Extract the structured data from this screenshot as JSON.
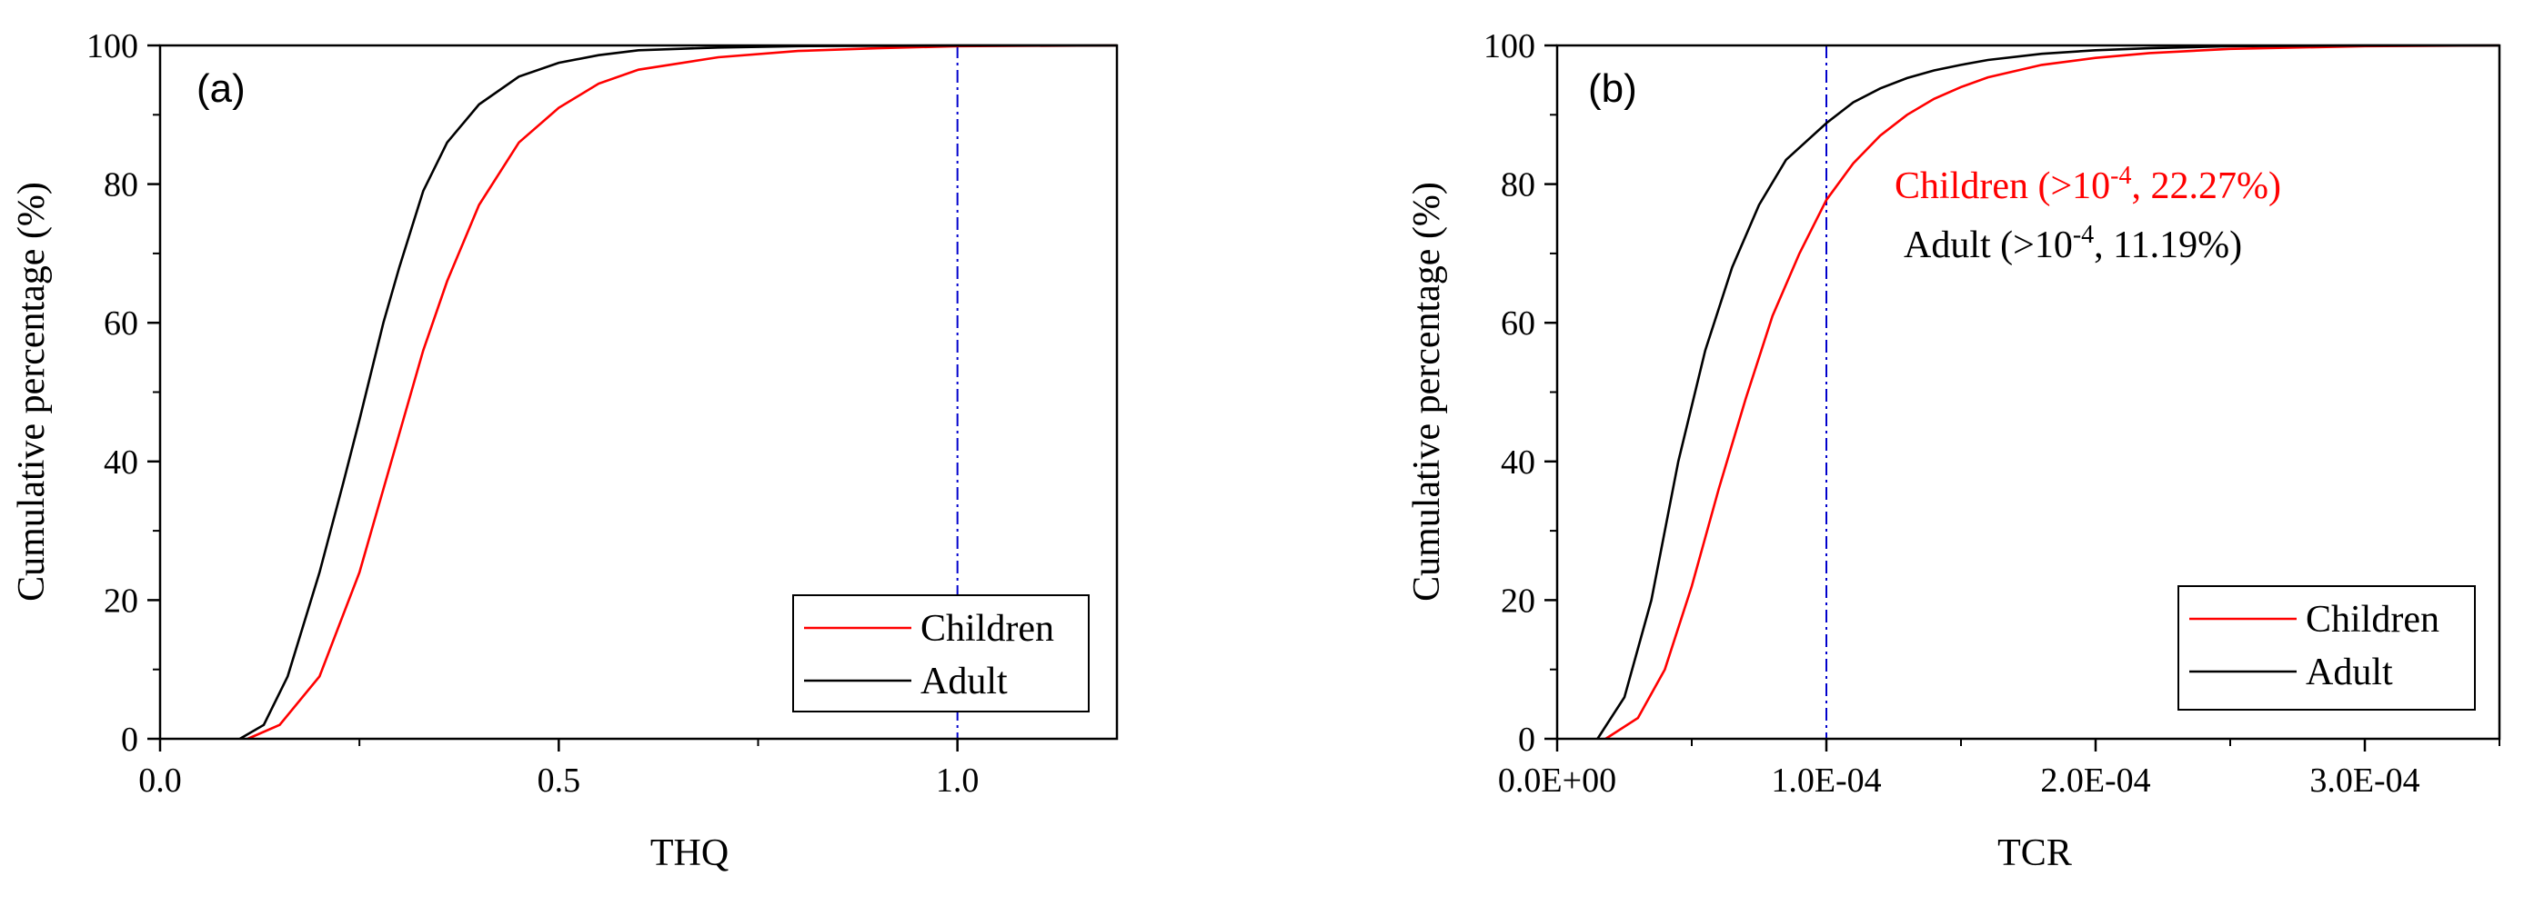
{
  "colors": {
    "children": "#ff0000",
    "adult": "#000000",
    "threshold": "#0000cc"
  },
  "chart_data": [
    {
      "type": "line",
      "panel_label": "(a)",
      "xlabel": "THQ",
      "ylabel": "Cumulative percentage (%)",
      "xlim": [
        0,
        1.2
      ],
      "ylim": [
        0,
        100
      ],
      "xticks": [
        0.0,
        0.5,
        1.0
      ],
      "xtick_labels": [
        "0.0",
        "0.5",
        "1.0"
      ],
      "yticks": [
        0,
        20,
        40,
        60,
        80,
        100
      ],
      "ytick_labels": [
        "0",
        "20",
        "40",
        "60",
        "80",
        "100"
      ],
      "threshold_x": 1.0,
      "legend": {
        "position": "bottom-right",
        "entries": [
          "Children",
          "Adult"
        ]
      },
      "series": [
        {
          "name": "Children",
          "color": "children",
          "x": [
            0.11,
            0.15,
            0.2,
            0.25,
            0.28,
            0.3,
            0.33,
            0.36,
            0.4,
            0.45,
            0.5,
            0.55,
            0.6,
            0.7,
            0.8,
            0.9,
            1.0,
            1.2
          ],
          "y": [
            0,
            2,
            9,
            24,
            36,
            44,
            56,
            66,
            77,
            86,
            91,
            94.5,
            96.5,
            98.3,
            99.2,
            99.6,
            99.9,
            100
          ]
        },
        {
          "name": "Adult",
          "color": "adult",
          "x": [
            0.1,
            0.13,
            0.16,
            0.2,
            0.23,
            0.25,
            0.28,
            0.3,
            0.33,
            0.36,
            0.4,
            0.45,
            0.5,
            0.55,
            0.6,
            0.7,
            0.8,
            1.0,
            1.2
          ],
          "y": [
            0,
            2,
            9,
            24,
            37,
            46,
            60,
            68,
            79,
            86,
            91.5,
            95.5,
            97.5,
            98.6,
            99.3,
            99.7,
            99.9,
            100,
            100
          ]
        }
      ]
    },
    {
      "type": "line",
      "panel_label": "(b)",
      "xlabel": "TCR",
      "ylabel": "Cumulative percentage (%)",
      "xlim": [
        0,
        0.00035
      ],
      "ylim": [
        0,
        100
      ],
      "xticks": [
        0,
        0.0001,
        0.0002,
        0.0003
      ],
      "xtick_labels": [
        "0.0E+00",
        "1.0E-04",
        "2.0E-04",
        "3.0E-04"
      ],
      "yticks": [
        0,
        20,
        40,
        60,
        80,
        100
      ],
      "ytick_labels": [
        "0",
        "20",
        "40",
        "60",
        "80",
        "100"
      ],
      "threshold_x": 0.0001,
      "legend": {
        "position": "bottom-right",
        "entries": [
          "Children",
          "Adult"
        ]
      },
      "annotations": [
        {
          "text": "Children (>10",
          "sup": "-4",
          "tail": ", 22.27%)",
          "color": "children"
        },
        {
          "text": "Adult (>10",
          "sup": "-4",
          "tail": ", 11.19%)",
          "color": "adult"
        }
      ],
      "series": [
        {
          "name": "Children",
          "color": "children",
          "x": [
            1.8e-05,
            3e-05,
            4e-05,
            5e-05,
            6e-05,
            7e-05,
            8e-05,
            9e-05,
            0.0001,
            0.00011,
            0.00012,
            0.00013,
            0.00014,
            0.00015,
            0.00016,
            0.00018,
            0.0002,
            0.00022,
            0.00025,
            0.0003,
            0.00035
          ],
          "y": [
            0,
            3,
            10,
            22,
            36,
            49,
            61,
            70,
            77.7,
            83,
            87,
            90,
            92.3,
            94,
            95.4,
            97.2,
            98.2,
            98.9,
            99.5,
            99.9,
            100
          ]
        },
        {
          "name": "Adult",
          "color": "adult",
          "x": [
            1.5e-05,
            2.5e-05,
            3.5e-05,
            4.5e-05,
            5.5e-05,
            6.5e-05,
            7.5e-05,
            8.5e-05,
            0.0001,
            0.00011,
            0.00012,
            0.00013,
            0.00014,
            0.00015,
            0.00016,
            0.00018,
            0.0002,
            0.00022,
            0.00025,
            0.0003,
            0.00035
          ],
          "y": [
            0,
            6,
            20,
            40,
            56,
            68,
            77,
            83.5,
            88.8,
            91.8,
            93.8,
            95.3,
            96.4,
            97.2,
            97.9,
            98.8,
            99.3,
            99.6,
            99.9,
            100,
            100
          ]
        }
      ]
    }
  ]
}
